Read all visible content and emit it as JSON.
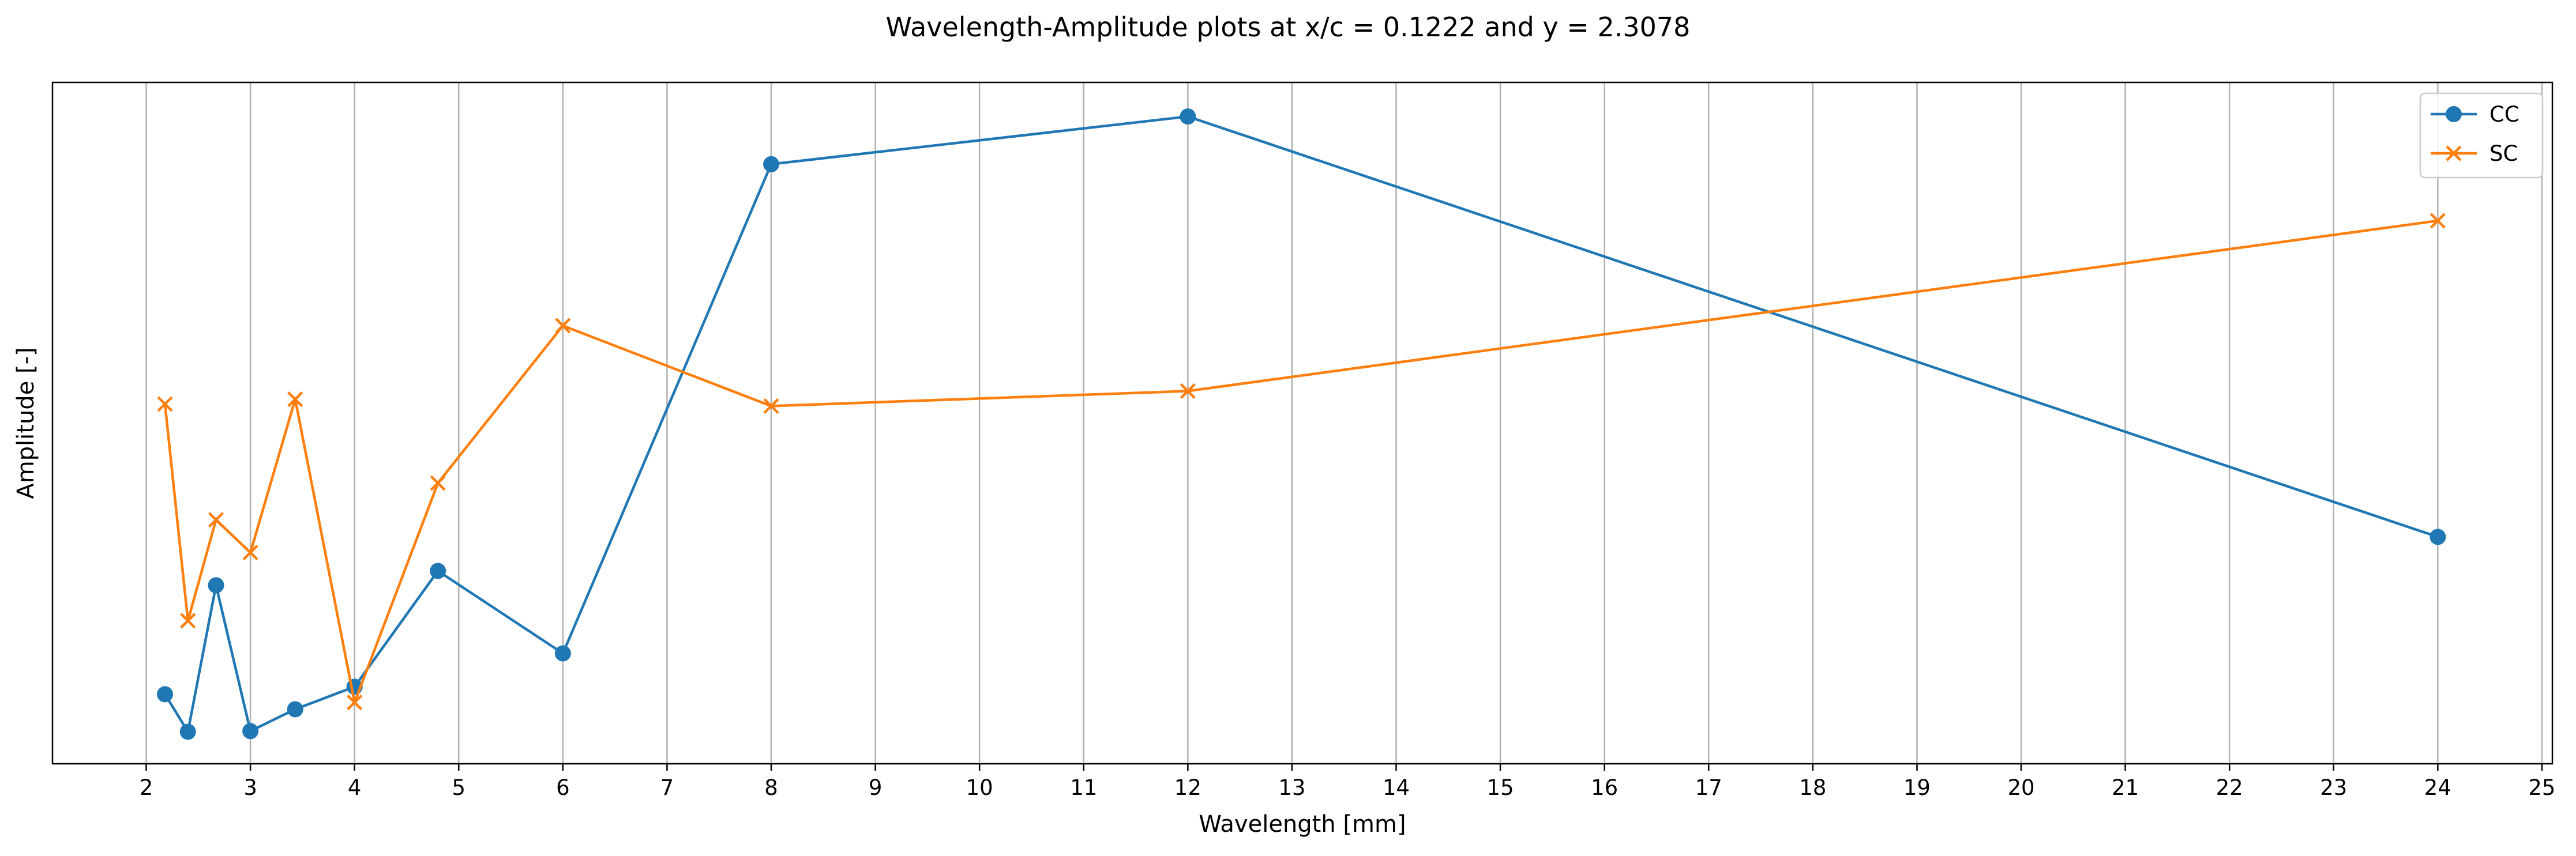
{
  "chart_data": {
    "type": "line",
    "title": "Wavelength-Amplitude plots at x/c = 0.1222 and y = 2.3078",
    "xlabel": "Wavelength [mm]",
    "ylabel": "Amplitude [-]",
    "xlim": [
      1.1,
      25.1
    ],
    "ylim": [
      0.0,
      1.0
    ],
    "xticks": [
      2,
      3,
      4,
      5,
      6,
      7,
      8,
      9,
      10,
      11,
      12,
      13,
      14,
      15,
      16,
      17,
      18,
      19,
      20,
      21,
      22,
      23,
      24,
      25
    ],
    "y_tick_labels_shown": false,
    "grid": "vertical",
    "legend_position": "top-right",
    "series": [
      {
        "name": "CC",
        "color": "#1f77b4",
        "marker": "circle",
        "x": [
          2.18,
          2.4,
          2.67,
          3.0,
          3.43,
          4.0,
          4.8,
          6.0,
          8.0,
          12.0,
          24.0
        ],
        "y": [
          0.102,
          0.047,
          0.262,
          0.048,
          0.08,
          0.113,
          0.283,
          0.162,
          0.88,
          0.95,
          0.333
        ]
      },
      {
        "name": "SC",
        "color": "#ff7f0e",
        "marker": "x",
        "x": [
          2.18,
          2.4,
          2.67,
          3.0,
          3.43,
          4.0,
          4.8,
          6.0,
          8.0,
          12.0,
          24.0
        ],
        "y": [
          0.528,
          0.21,
          0.358,
          0.31,
          0.535,
          0.09,
          0.412,
          0.643,
          0.525,
          0.547,
          0.797
        ]
      }
    ]
  }
}
